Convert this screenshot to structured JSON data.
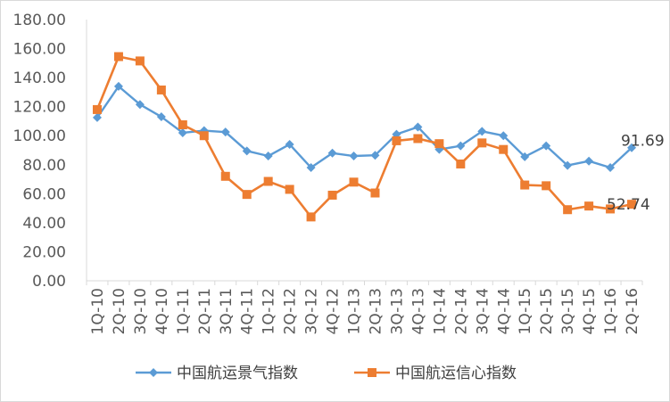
{
  "chart_data": {
    "type": "line",
    "categories": [
      "1Q-10",
      "2Q-10",
      "3Q-10",
      "4Q-10",
      "1Q-11",
      "2Q-11",
      "3Q-11",
      "4Q-11",
      "1Q-12",
      "2Q-12",
      "3Q-12",
      "4Q-12",
      "1Q-13",
      "2Q-13",
      "3Q-13",
      "4Q-13",
      "1Q-14",
      "2Q-14",
      "3Q-14",
      "4Q-14",
      "1Q-15",
      "2Q-15",
      "3Q-15",
      "4Q-15",
      "1Q-16",
      "2Q-16"
    ],
    "series": [
      {
        "name": "中国航运景气指数",
        "color": "#5b9bd5",
        "marker": "diamond",
        "values": [
          112.5,
          134.0,
          121.5,
          113.0,
          102.0,
          103.5,
          102.5,
          89.5,
          86.0,
          94.0,
          78.0,
          88.0,
          86.0,
          86.5,
          101.0,
          106.0,
          90.5,
          93.0,
          103.0,
          100.0,
          85.5,
          93.0,
          79.5,
          82.5,
          78.0,
          91.69
        ]
      },
      {
        "name": "中国航运信心指数",
        "color": "#ed7d31",
        "marker": "square",
        "values": [
          118.0,
          154.5,
          151.5,
          131.5,
          107.5,
          100.0,
          72.0,
          59.5,
          68.5,
          63.0,
          44.0,
          59.0,
          68.0,
          60.5,
          96.5,
          98.0,
          94.5,
          80.5,
          95.0,
          90.5,
          66.0,
          65.5,
          49.0,
          51.5,
          49.5,
          52.74
        ]
      }
    ],
    "data_labels": [
      "91.69",
      "52.74"
    ],
    "ylim": [
      0,
      180
    ],
    "yticks": [
      "0.00",
      "20.00",
      "40.00",
      "60.00",
      "80.00",
      "100.00",
      "120.00",
      "140.00",
      "160.00",
      "180.00"
    ],
    "grid": false,
    "legend_position": "bottom"
  }
}
